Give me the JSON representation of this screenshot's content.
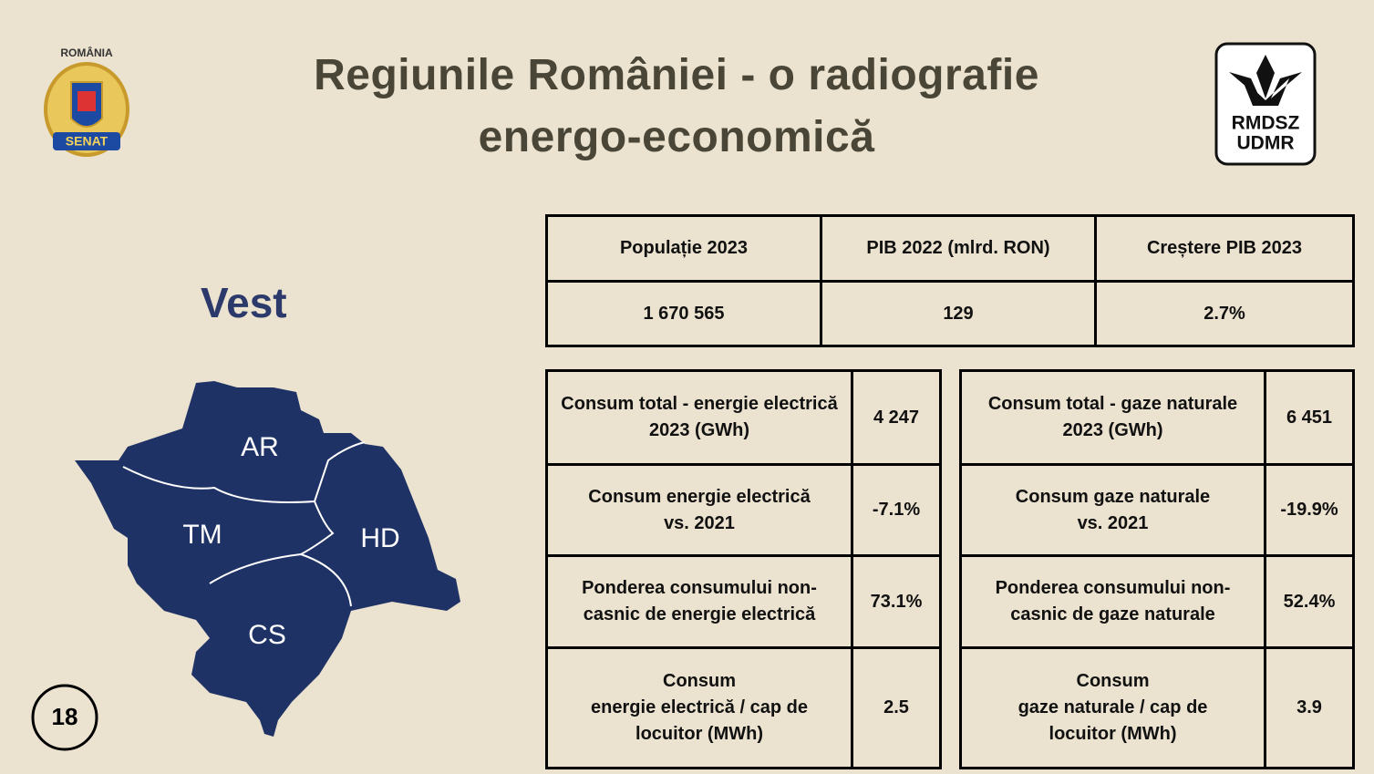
{
  "header": {
    "title_lines": [
      "Regiunile României - o radiografie",
      "energo-economică"
    ],
    "left_logo": {
      "top": "ROMÂNIA",
      "bottom": "SENAT"
    },
    "right_logo": {
      "line1": "RMDSZ",
      "line2": "UDMR"
    }
  },
  "region": {
    "name": "Vest",
    "counties": [
      "AR",
      "TM",
      "HD",
      "CS"
    ]
  },
  "page_number": "18",
  "summary_table": {
    "headers": [
      "Populație 2023",
      "PIB 2022 (mlrd. RON)",
      "Creștere PIB 2023"
    ],
    "values": [
      "1 670 565",
      "129",
      "2.7%"
    ]
  },
  "electricity_table": {
    "rows": [
      [
        "Consum total - energie electrică 2023 (GWh)",
        "4 247"
      ],
      [
        "Consum energie electrică\nvs. 2021",
        "-7.1%"
      ],
      [
        "Ponderea consumului non-casnic de energie electrică",
        "73.1%"
      ],
      [
        "Consum\n energie electrică / cap de\nlocuitor (MWh)",
        "2.5"
      ]
    ]
  },
  "gas_table": {
    "rows": [
      [
        "Consum total - gaze naturale 2023 (GWh)",
        "6 451"
      ],
      [
        "Consum gaze naturale\nvs. 2021",
        "-19.9%"
      ],
      [
        "Ponderea consumului non-casnic de gaze naturale",
        "52.4%"
      ],
      [
        "Consum\n gaze naturale / cap de\nlocuitor (MWh)",
        "3.9"
      ]
    ]
  }
}
